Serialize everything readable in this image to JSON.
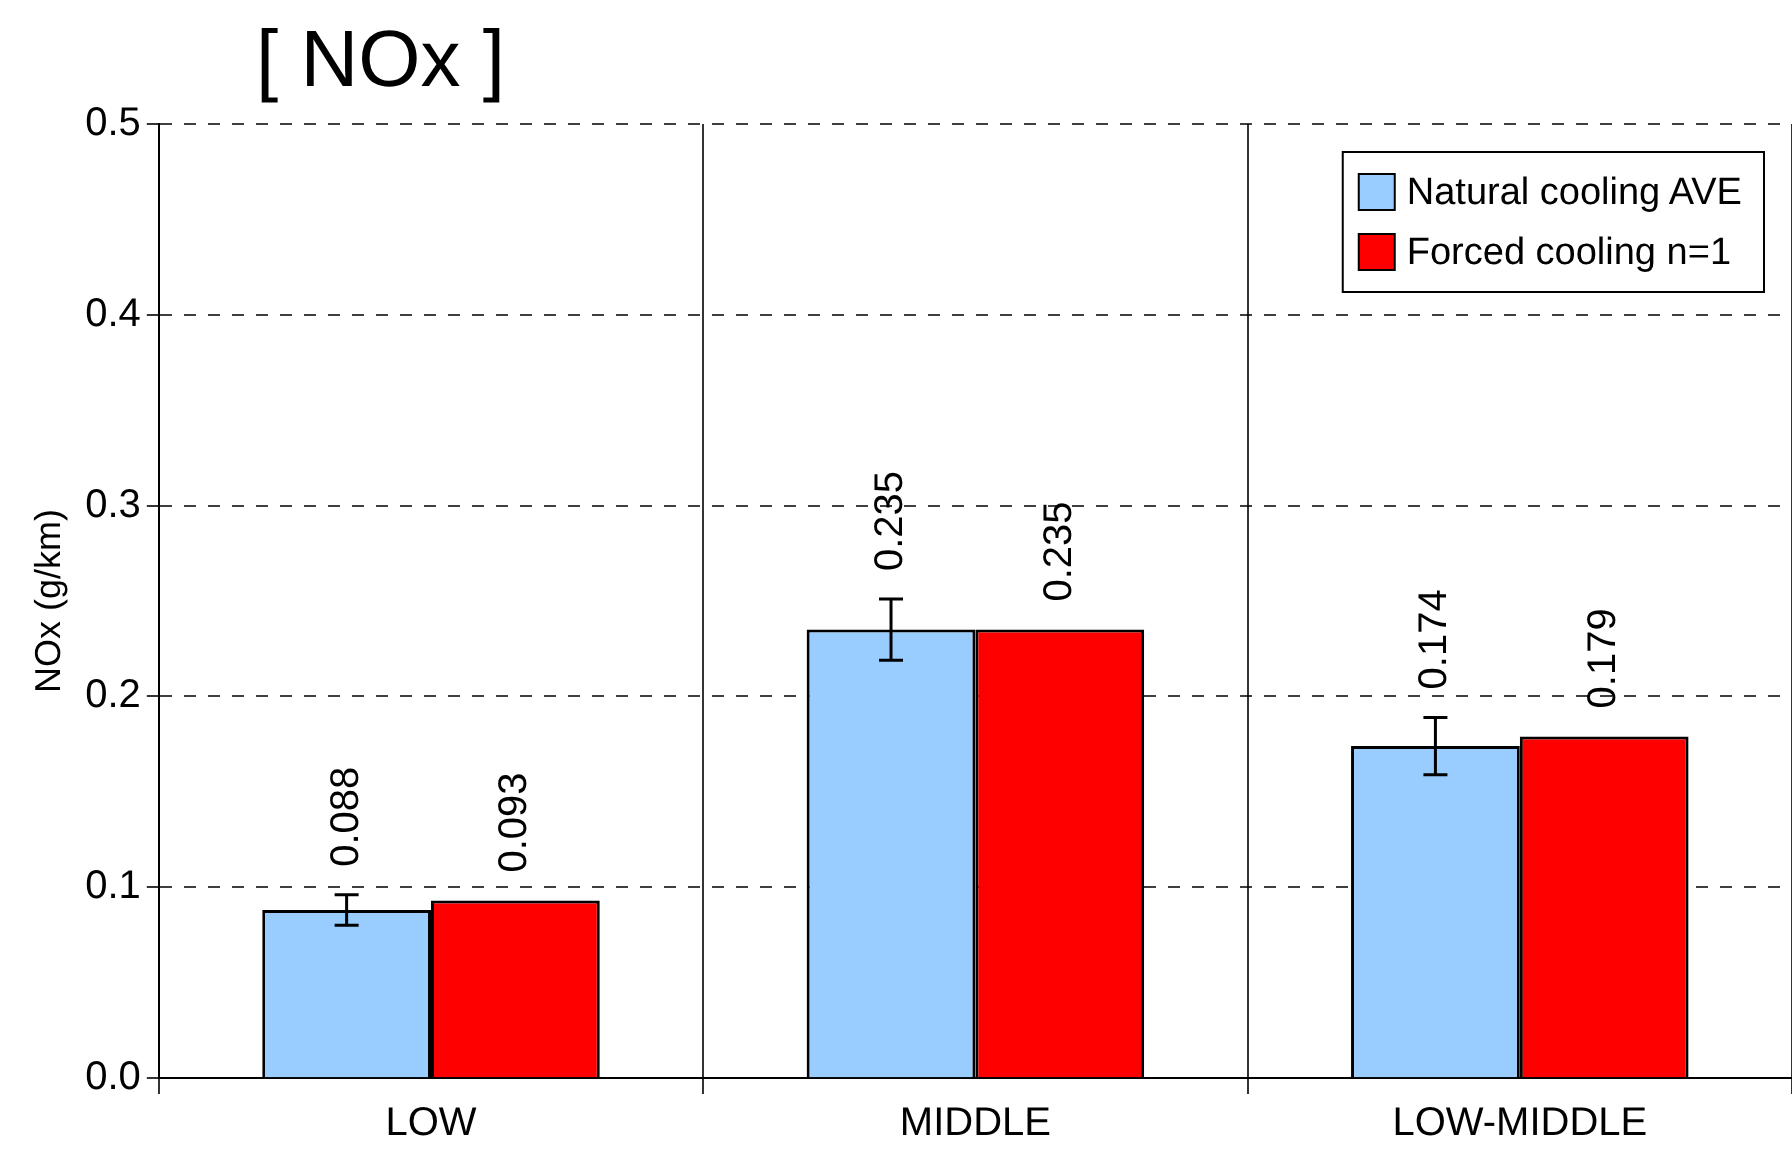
{
  "chart_data": {
    "type": "bar",
    "title": "[ NOx ]",
    "ylabel": "NOx (g/km)",
    "categories": [
      "LOW",
      "MIDDLE",
      "LOW-MIDDLE"
    ],
    "series": [
      {
        "name": "Natural cooling AVE",
        "color": "#99ccff",
        "values": [
          0.088,
          0.235,
          0.174
        ],
        "errors": [
          0.008,
          0.016,
          0.015
        ]
      },
      {
        "name": "Forced cooling n=1",
        "color": "#ff0000",
        "values": [
          0.093,
          0.235,
          0.179
        ]
      }
    ],
    "ylim": [
      0,
      0.5
    ],
    "yticks": [
      {
        "value": 0,
        "label": "0.0"
      },
      {
        "value": 0.1,
        "label": "0.1"
      },
      {
        "value": 0.2,
        "label": "0.2"
      },
      {
        "value": 0.3,
        "label": "0.3"
      },
      {
        "value": 0.4,
        "label": "0.4"
      },
      {
        "value": 0.5,
        "label": "0.5"
      }
    ],
    "grid": true,
    "legend": "top right",
    "data_labels": true
  }
}
